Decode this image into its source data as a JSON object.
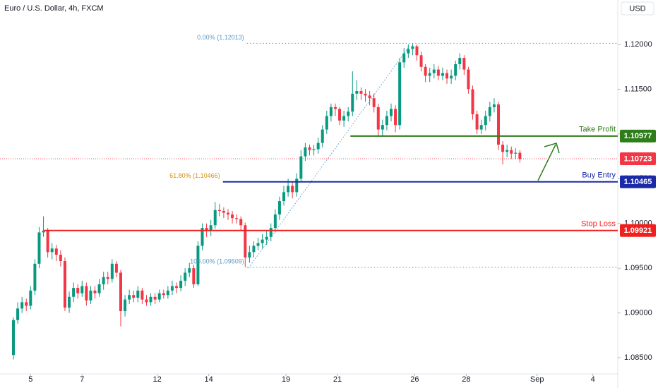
{
  "chart_data": {
    "type": "candlestick",
    "title": "Euro / U.S. Dollar, 4h, FXCM",
    "currency": "USD",
    "up_color": "#089981",
    "down_color": "#f23645",
    "open": [
      1.0853,
      1.0892,
      1.0905,
      1.0912,
      1.0908,
      1.0925,
      1.0955,
      1.099,
      1.0992,
      1.0968,
      1.0972,
      1.0965,
      1.0958,
      1.0906,
      1.0918,
      1.0928,
      1.0922,
      1.093,
      1.0914,
      1.0925,
      1.0922,
      1.0932,
      1.094,
      1.0938,
      1.0955,
      1.0945,
      1.0902,
      1.0915,
      1.092,
      1.0917,
      1.0925,
      1.0915,
      1.0912,
      1.0918,
      1.0915,
      1.0922,
      1.092,
      1.0925,
      1.093,
      1.0928,
      1.0936,
      1.0945,
      1.095,
      1.0932,
      1.0975,
      1.0995,
      1.0992,
      1.0998,
      1.1015,
      1.1014,
      1.1012,
      1.101,
      1.1006,
      1.1005,
      1.0998,
      1.0962,
      1.0968,
      1.0975,
      1.0978,
      1.0982,
      1.0985,
      1.0995,
      1.101,
      1.1025,
      1.1035,
      1.1042,
      1.1035,
      1.105,
      1.1075,
      1.1085,
      1.1082,
      1.1083,
      1.109,
      1.1105,
      1.112,
      1.113,
      1.1128,
      1.1115,
      1.112,
      1.1125,
      1.1145,
      1.1148,
      1.1145,
      1.1143,
      1.114,
      1.113,
      1.1105,
      1.111,
      1.112,
      1.1128,
      1.111,
      1.118,
      1.119,
      1.1195,
      1.1198,
      1.1188,
      1.1175,
      1.1165,
      1.1168,
      1.1172,
      1.1165,
      1.1168,
      1.1162,
      1.1165,
      1.1178,
      1.1185,
      1.1172,
      1.115,
      1.1122,
      1.1105,
      1.111,
      1.112,
      1.113,
      1.1133,
      1.1088,
      1.108,
      1.1082,
      1.1078,
      1.1079
    ],
    "high": [
      1.0895,
      1.0912,
      1.0918,
      1.0916,
      1.093,
      1.096,
      1.0996,
      1.1008,
      1.0995,
      1.0978,
      1.0976,
      1.097,
      1.0962,
      1.0924,
      1.0934,
      1.0932,
      1.0936,
      1.0934,
      1.093,
      1.093,
      1.0938,
      1.0946,
      1.0946,
      1.096,
      1.0958,
      1.0948,
      1.092,
      1.0926,
      1.0925,
      1.093,
      1.0928,
      1.092,
      1.0922,
      1.0922,
      1.0926,
      1.0926,
      1.093,
      1.0936,
      1.0934,
      1.0942,
      1.095,
      1.0956,
      1.0954,
      1.098,
      1.1,
      1.1,
      1.1004,
      1.1024,
      1.1022,
      1.1018,
      1.1016,
      1.1014,
      1.101,
      1.1008,
      1.1001,
      1.0975,
      1.098,
      1.0984,
      1.0988,
      1.0992,
      1.1,
      1.1016,
      1.103,
      1.1042,
      1.105,
      1.1046,
      1.1056,
      1.1082,
      1.109,
      1.1088,
      1.1088,
      1.1096,
      1.111,
      1.1126,
      1.1134,
      1.1134,
      1.113,
      1.1126,
      1.113,
      1.117,
      1.116,
      1.1152,
      1.115,
      1.1148,
      1.1145,
      1.1134,
      1.1116,
      1.1126,
      1.1134,
      1.1132,
      1.1185,
      1.1196,
      1.12,
      1.1201,
      1.12,
      1.1192,
      1.1178,
      1.1174,
      1.1178,
      1.1176,
      1.1174,
      1.1172,
      1.1172,
      1.1182,
      1.119,
      1.1188,
      1.1175,
      1.1154,
      1.1126,
      1.1116,
      1.1126,
      1.1136,
      1.114,
      1.1136,
      1.1092,
      1.1088,
      1.1086,
      1.1084,
      1.1082
    ],
    "low": [
      1.0848,
      1.0888,
      1.09,
      1.0902,
      1.0904,
      1.092,
      1.095,
      1.0985,
      1.0962,
      1.096,
      1.0958,
      1.0952,
      1.0902,
      1.09,
      1.0912,
      1.0916,
      1.0918,
      1.0908,
      1.091,
      1.0916,
      1.0918,
      1.0926,
      1.0932,
      1.0934,
      1.094,
      1.0885,
      1.0896,
      1.091,
      1.0912,
      1.0912,
      1.091,
      1.0908,
      1.0908,
      1.091,
      1.0912,
      1.0916,
      1.0916,
      1.092,
      1.0922,
      1.0924,
      1.093,
      1.094,
      1.0928,
      1.093,
      1.097,
      1.0985,
      1.0986,
      1.0994,
      1.1008,
      1.1006,
      1.1004,
      1.1,
      1.1,
      1.0992,
      1.0951,
      1.0956,
      1.0962,
      1.097,
      1.0972,
      1.0976,
      1.098,
      1.099,
      1.1004,
      1.102,
      1.103,
      1.1028,
      1.103,
      1.1046,
      1.107,
      1.1076,
      1.1076,
      1.1078,
      1.1085,
      1.11,
      1.1114,
      1.112,
      1.111,
      1.1108,
      1.1114,
      1.112,
      1.1138,
      1.1138,
      1.1136,
      1.1132,
      1.1124,
      1.1098,
      1.1098,
      1.1104,
      1.1114,
      1.1102,
      1.1105,
      1.1174,
      1.1185,
      1.1188,
      1.1182,
      1.117,
      1.1158,
      1.1158,
      1.1162,
      1.116,
      1.116,
      1.1156,
      1.1156,
      1.116,
      1.1172,
      1.1166,
      1.1145,
      1.1116,
      1.11,
      1.11,
      1.1104,
      1.1114,
      1.1124,
      1.1082,
      1.1066,
      1.1074,
      1.1072,
      1.1072,
      1.1068
    ],
    "close": [
      1.0892,
      1.0905,
      1.0912,
      1.0908,
      1.0925,
      1.0955,
      1.099,
      1.0992,
      1.0968,
      1.0972,
      1.0965,
      1.0958,
      1.0906,
      1.0918,
      1.0928,
      1.0922,
      1.093,
      1.0914,
      1.0925,
      1.0922,
      1.0932,
      1.094,
      1.0938,
      1.0955,
      1.0945,
      1.0902,
      1.0915,
      1.092,
      1.0917,
      1.0925,
      1.0915,
      1.0912,
      1.0918,
      1.0915,
      1.0922,
      1.092,
      1.0925,
      1.093,
      1.0928,
      1.0936,
      1.0945,
      1.095,
      1.0932,
      1.0975,
      1.0995,
      1.0992,
      1.0998,
      1.1015,
      1.1014,
      1.1012,
      1.101,
      1.1006,
      1.1005,
      1.0998,
      1.0962,
      1.0968,
      1.0975,
      1.0978,
      1.0982,
      1.0985,
      1.0995,
      1.101,
      1.1025,
      1.1035,
      1.1042,
      1.1035,
      1.105,
      1.1075,
      1.1085,
      1.1082,
      1.1083,
      1.109,
      1.1105,
      1.112,
      1.113,
      1.1128,
      1.1115,
      1.112,
      1.1125,
      1.1145,
      1.1148,
      1.1145,
      1.1143,
      1.114,
      1.113,
      1.1105,
      1.111,
      1.112,
      1.1128,
      1.111,
      1.118,
      1.119,
      1.1195,
      1.1198,
      1.1188,
      1.1175,
      1.1165,
      1.1168,
      1.1172,
      1.1165,
      1.1168,
      1.1162,
      1.1165,
      1.1178,
      1.1185,
      1.1172,
      1.115,
      1.1122,
      1.1105,
      1.111,
      1.112,
      1.113,
      1.1133,
      1.1088,
      1.108,
      1.1082,
      1.1078,
      1.1079,
      1.1072
    ],
    "xlim": [
      -3.125,
      140.8
    ],
    "xticks": [
      {
        "value": 4,
        "label": "5"
      },
      {
        "value": 16,
        "label": "7"
      },
      {
        "value": 33.5,
        "label": "12"
      },
      {
        "value": 45.5,
        "label": "14"
      },
      {
        "value": 63.5,
        "label": "19"
      },
      {
        "value": 75.5,
        "label": "21"
      },
      {
        "value": 93.5,
        "label": "26"
      },
      {
        "value": 105.5,
        "label": "28"
      },
      {
        "value": 122,
        "label": "Sep"
      },
      {
        "value": 135,
        "label": "4"
      }
    ],
    "ylim": [
      1.08319,
      1.12497
    ],
    "yticks": [
      {
        "value": 1.12,
        "label": "1.12000"
      },
      {
        "value": 1.115,
        "label": "1.11500"
      },
      {
        "value": 1.11,
        "label": "1.11000"
      },
      {
        "value": 1.105,
        "label": "1.10500"
      },
      {
        "value": 1.1,
        "label": "1.10000"
      },
      {
        "value": 1.095,
        "label": "1.09500"
      },
      {
        "value": 1.09,
        "label": "1.09000"
      },
      {
        "value": 1.085,
        "label": "1.08500"
      }
    ],
    "last_price": 1.10723,
    "levels": [
      {
        "name": "Take Profit",
        "value": 1.10977,
        "color": "#2e7d1a",
        "start": 78.5
      },
      {
        "name": "Buy Entry",
        "value": 1.10465,
        "color": "#1c2aa8",
        "start": 48.8
      },
      {
        "name": "Stop Loss",
        "value": 1.09921,
        "color": "#f0201e",
        "start": 7.1
      }
    ],
    "fib": [
      {
        "label": "0.00% (1.12013)",
        "value": 1.12013,
        "color": "#5b9ac9",
        "start": 54.4
      },
      {
        "label": "61.80% (1.10466)",
        "value": 1.10466,
        "color": "#d4900f",
        "start": 48.8
      },
      {
        "label": "100.00% (1.09509)",
        "value": 1.09509,
        "color": "#5b9ac9",
        "start": 54.4
      }
    ]
  }
}
